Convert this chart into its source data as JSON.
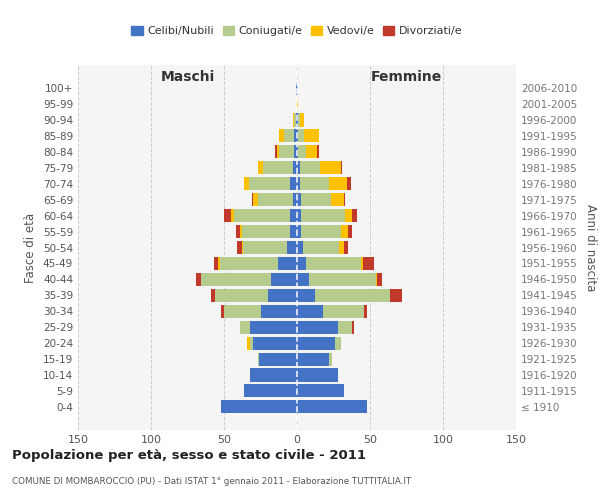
{
  "age_groups": [
    "100+",
    "95-99",
    "90-94",
    "85-89",
    "80-84",
    "75-79",
    "70-74",
    "65-69",
    "60-64",
    "55-59",
    "50-54",
    "45-49",
    "40-44",
    "35-39",
    "30-34",
    "25-29",
    "20-24",
    "15-19",
    "10-14",
    "5-9",
    "0-4"
  ],
  "birth_years": [
    "≤ 1910",
    "1911-1915",
    "1916-1920",
    "1921-1925",
    "1926-1930",
    "1931-1935",
    "1936-1940",
    "1941-1945",
    "1946-1950",
    "1951-1955",
    "1956-1960",
    "1961-1965",
    "1966-1970",
    "1971-1975",
    "1976-1980",
    "1981-1985",
    "1986-1990",
    "1991-1995",
    "1996-2000",
    "2001-2005",
    "2006-2010"
  ],
  "males": {
    "celibi": [
      1,
      0,
      1,
      2,
      2,
      3,
      5,
      3,
      5,
      5,
      7,
      13,
      18,
      20,
      25,
      32,
      30,
      26,
      32,
      36,
      52
    ],
    "coniugati": [
      0,
      0,
      1,
      7,
      10,
      20,
      28,
      24,
      38,
      33,
      30,
      40,
      48,
      36,
      25,
      7,
      2,
      1,
      0,
      0,
      0
    ],
    "vedovi": [
      0,
      0,
      1,
      3,
      2,
      4,
      3,
      3,
      2,
      1,
      1,
      1,
      0,
      0,
      0,
      0,
      2,
      0,
      0,
      0,
      0
    ],
    "divorziati": [
      0,
      0,
      0,
      0,
      1,
      0,
      0,
      1,
      5,
      3,
      3,
      3,
      3,
      3,
      2,
      0,
      0,
      0,
      0,
      0,
      0
    ]
  },
  "females": {
    "nubili": [
      0,
      0,
      1,
      1,
      1,
      2,
      2,
      3,
      3,
      3,
      4,
      6,
      8,
      12,
      18,
      28,
      26,
      22,
      28,
      32,
      48
    ],
    "coniugate": [
      0,
      0,
      1,
      4,
      5,
      14,
      20,
      20,
      30,
      27,
      25,
      38,
      46,
      52,
      28,
      10,
      4,
      2,
      0,
      0,
      0
    ],
    "vedove": [
      0,
      1,
      3,
      10,
      8,
      14,
      12,
      9,
      5,
      5,
      3,
      1,
      1,
      0,
      0,
      0,
      0,
      0,
      0,
      0,
      0
    ],
    "divorziate": [
      0,
      0,
      0,
      0,
      1,
      1,
      3,
      1,
      3,
      3,
      3,
      8,
      3,
      8,
      2,
      1,
      0,
      0,
      0,
      0,
      0
    ]
  },
  "colors": {
    "celibi": "#4472c4",
    "coniugati": "#b5cc8e",
    "vedovi": "#ffc000",
    "divorziati": "#c0392b"
  },
  "xlim": 150,
  "title": "Popolazione per età, sesso e stato civile - 2011",
  "subtitle": "COMUNE DI MOMBAROCCIO (PU) - Dati ISTAT 1° gennaio 2011 - Elaborazione TUTTITALIA.IT",
  "ylabel_left": "Fasce di età",
  "ylabel_right": "Anni di nascita",
  "label_maschi": "Maschi",
  "label_femmine": "Femmine",
  "legend_labels": [
    "Celibi/Nubili",
    "Coniugati/e",
    "Vedovi/e",
    "Divorziati/e"
  ],
  "bg_color": "#f0f0f0"
}
